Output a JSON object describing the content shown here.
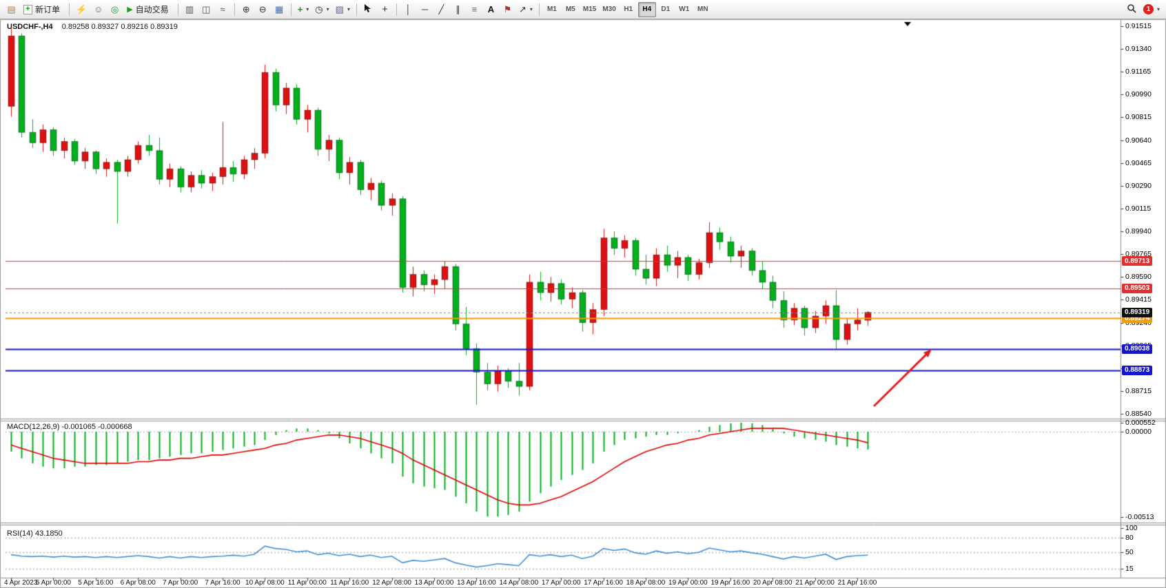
{
  "toolbar": {
    "new_order_label": "新订单",
    "autotrading_label": "自动交易",
    "timeframes": [
      "M1",
      "M5",
      "M15",
      "M30",
      "H1",
      "H4",
      "D1",
      "W1",
      "MN"
    ],
    "active_timeframe": "H4",
    "notification_count": "1",
    "icons": {
      "chart_window": "▤",
      "order_plus": "+",
      "lightning": "⚡",
      "user": "☺",
      "compass": "◎",
      "play": "▶",
      "bar_chart": "▥",
      "candle_chart": "◫",
      "line_chart": "≈",
      "zoom_in": "⊕",
      "zoom_out": "⊖",
      "tile_windows": "▦",
      "indicators_plus": "+",
      "periods_clock": "◷",
      "templates": "▨",
      "crosshair": "+",
      "vertical_line": "│",
      "horizontal_line": "─",
      "trend_line": "╱",
      "channel": "∥",
      "fibonacci": "≡",
      "text": "A",
      "text_label": "⚑",
      "arrows_tool": "↗",
      "caret": "▾"
    }
  },
  "chart_data": {
    "type": "candlestick",
    "title": "USDCHF-,H4",
    "ohlc_text": "0.89258 0.89327 0.89216 0.89319",
    "bull_color": "#dd1111",
    "bear_color": "#00b01c",
    "price_axis": {
      "max": 0.91515,
      "min": 0.8854,
      "labels": [
        "0.91515",
        "0.91340",
        "0.91165",
        "0.90990",
        "0.90815",
        "0.90640",
        "0.90465",
        "0.90290",
        "0.90115",
        "0.89940",
        "0.89765",
        "0.89590",
        "0.89415",
        "0.89240",
        "0.89065",
        "0.88890",
        "0.88715",
        "0.88540"
      ]
    },
    "time_labels": [
      "4 Apr 2023",
      "5 Apr 00:00",
      "5 Apr 16:00",
      "6 Apr 08:00",
      "7 Apr 00:00",
      "7 Apr 16:00",
      "10 Apr 08:00",
      "11 Apr 00:00",
      "11 Apr 16:00",
      "12 Apr 08:00",
      "13 Apr 00:00",
      "13 Apr 16:00",
      "14 Apr 08:00",
      "17 Apr 00:00",
      "17 Apr 16:00",
      "18 Apr 08:00",
      "19 Apr 00:00",
      "19 Apr 16:00",
      "20 Apr 08:00",
      "21 Apr 00:00",
      "21 Apr 16:00"
    ],
    "candles": [
      [
        0.909,
        0.915,
        0.9082,
        0.9144
      ],
      [
        0.9144,
        0.9146,
        0.9066,
        0.907
      ],
      [
        0.907,
        0.908,
        0.9058,
        0.9062
      ],
      [
        0.9062,
        0.9076,
        0.9055,
        0.9072
      ],
      [
        0.9072,
        0.9074,
        0.9052,
        0.9056
      ],
      [
        0.9056,
        0.9066,
        0.905,
        0.9063
      ],
      [
        0.9063,
        0.9065,
        0.9045,
        0.9048
      ],
      [
        0.9048,
        0.9058,
        0.9042,
        0.9055
      ],
      [
        0.9055,
        0.9056,
        0.9038,
        0.9042
      ],
      [
        0.9042,
        0.905,
        0.9036,
        0.9047
      ],
      [
        0.9047,
        0.9049,
        0.9,
        0.904
      ],
      [
        0.904,
        0.9052,
        0.9036,
        0.9049
      ],
      [
        0.9049,
        0.9063,
        0.9046,
        0.906
      ],
      [
        0.906,
        0.9068,
        0.9052,
        0.9056
      ],
      [
        0.9056,
        0.9066,
        0.903,
        0.9034
      ],
      [
        0.9034,
        0.9046,
        0.9028,
        0.9042
      ],
      [
        0.9042,
        0.9044,
        0.9024,
        0.9028
      ],
      [
        0.9028,
        0.904,
        0.9024,
        0.9037
      ],
      [
        0.9037,
        0.9041,
        0.9027,
        0.9031
      ],
      [
        0.9031,
        0.9039,
        0.9025,
        0.9036
      ],
      [
        0.9036,
        0.9078,
        0.903,
        0.9043
      ],
      [
        0.9043,
        0.9048,
        0.9032,
        0.9038
      ],
      [
        0.9038,
        0.9052,
        0.9034,
        0.9049
      ],
      [
        0.9049,
        0.9058,
        0.9042,
        0.9054
      ],
      [
        0.9054,
        0.9122,
        0.905,
        0.9116
      ],
      [
        0.9116,
        0.9119,
        0.9086,
        0.9091
      ],
      [
        0.9091,
        0.9108,
        0.9084,
        0.9104
      ],
      [
        0.9104,
        0.9107,
        0.9076,
        0.908
      ],
      [
        0.908,
        0.9091,
        0.907,
        0.9087
      ],
      [
        0.9087,
        0.9089,
        0.9052,
        0.9057
      ],
      [
        0.9057,
        0.9068,
        0.9048,
        0.9064
      ],
      [
        0.9064,
        0.9066,
        0.9034,
        0.9039
      ],
      [
        0.9039,
        0.9051,
        0.903,
        0.9047
      ],
      [
        0.9047,
        0.9049,
        0.9022,
        0.9026
      ],
      [
        0.9026,
        0.9035,
        0.9018,
        0.9031
      ],
      [
        0.9031,
        0.9033,
        0.901,
        0.9014
      ],
      [
        0.9014,
        0.9023,
        0.9006,
        0.9019
      ],
      [
        0.9019,
        0.9021,
        0.8947,
        0.8951
      ],
      [
        0.8951,
        0.8967,
        0.8944,
        0.8961
      ],
      [
        0.8961,
        0.8964,
        0.8948,
        0.8953
      ],
      [
        0.8953,
        0.8961,
        0.8946,
        0.8957
      ],
      [
        0.8957,
        0.8971,
        0.895,
        0.8967
      ],
      [
        0.8967,
        0.8969,
        0.8918,
        0.8923
      ],
      [
        0.8923,
        0.8936,
        0.8899,
        0.8904
      ],
      [
        0.8904,
        0.8908,
        0.8861,
        0.8886
      ],
      [
        0.8886,
        0.8893,
        0.8872,
        0.8877
      ],
      [
        0.8877,
        0.8891,
        0.8871,
        0.8887
      ],
      [
        0.8887,
        0.8889,
        0.8874,
        0.8879
      ],
      [
        0.8879,
        0.8893,
        0.8868,
        0.8875
      ],
      [
        0.8875,
        0.8961,
        0.8872,
        0.8955
      ],
      [
        0.8955,
        0.8963,
        0.8941,
        0.8947
      ],
      [
        0.8947,
        0.8959,
        0.894,
        0.8954
      ],
      [
        0.8954,
        0.8957,
        0.8938,
        0.8942
      ],
      [
        0.8942,
        0.8951,
        0.8935,
        0.8947
      ],
      [
        0.8947,
        0.8949,
        0.8917,
        0.8924
      ],
      [
        0.8924,
        0.8939,
        0.8915,
        0.8934
      ],
      [
        0.8934,
        0.8996,
        0.8929,
        0.8989
      ],
      [
        0.8989,
        0.8994,
        0.8976,
        0.8981
      ],
      [
        0.8981,
        0.8991,
        0.8974,
        0.8987
      ],
      [
        0.8987,
        0.8989,
        0.896,
        0.8965
      ],
      [
        0.8965,
        0.8976,
        0.8953,
        0.8958
      ],
      [
        0.8958,
        0.8981,
        0.8952,
        0.8976
      ],
      [
        0.8976,
        0.8983,
        0.8963,
        0.8968
      ],
      [
        0.8968,
        0.8979,
        0.8958,
        0.8974
      ],
      [
        0.8974,
        0.8976,
        0.8956,
        0.8961
      ],
      [
        0.8961,
        0.8973,
        0.8957,
        0.897
      ],
      [
        0.897,
        0.9001,
        0.8966,
        0.8993
      ],
      [
        0.8993,
        0.8997,
        0.898,
        0.8986
      ],
      [
        0.8986,
        0.899,
        0.897,
        0.8975
      ],
      [
        0.8975,
        0.8983,
        0.8966,
        0.8979
      ],
      [
        0.8979,
        0.8981,
        0.896,
        0.8964
      ],
      [
        0.8964,
        0.8971,
        0.895,
        0.8955
      ],
      [
        0.8955,
        0.896,
        0.8935,
        0.8941
      ],
      [
        0.8941,
        0.8948,
        0.892,
        0.8926
      ],
      [
        0.8926,
        0.8939,
        0.8922,
        0.8935
      ],
      [
        0.8935,
        0.8937,
        0.8914,
        0.892
      ],
      [
        0.892,
        0.8933,
        0.8916,
        0.8929
      ],
      [
        0.8929,
        0.8941,
        0.8923,
        0.8937
      ],
      [
        0.8937,
        0.8949,
        0.8904,
        0.8911
      ],
      [
        0.8911,
        0.8927,
        0.8907,
        0.8923
      ],
      [
        0.8923,
        0.8935,
        0.8918,
        0.8926
      ],
      [
        0.89258,
        0.89327,
        0.89216,
        0.89319
      ]
    ],
    "levels": [
      {
        "label": "0.89713",
        "price": 0.89713,
        "color": "#e03131",
        "width": 1
      },
      {
        "label": "0.89503",
        "price": 0.89503,
        "color": "#e03131",
        "width": 1
      },
      {
        "label": "0.89274",
        "price": 0.89274,
        "color": "#f59d00",
        "width": 2
      },
      {
        "label": "0.89038",
        "price": 0.89038,
        "color": "#1414cc",
        "width": 2
      },
      {
        "label": "0.88873",
        "price": 0.88873,
        "color": "#1414cc",
        "width": 2
      }
    ],
    "current_price": {
      "label": "0.89319",
      "value": 0.89319,
      "tag_color": "#111111"
    },
    "arrow": {
      "color": "#e02020",
      "from": [
        1268,
        590
      ],
      "to": [
        1352,
        507
      ]
    },
    "macd": {
      "label": "MACD(12,26,9)",
      "values_text": "-0.001065 -0.000668",
      "axis_labels": [
        "0.000552",
        "0.00000",
        "-0.00513"
      ],
      "hist_color": "#00b01c",
      "signal_color": "#e00000",
      "hist": [
        -0.0012,
        -0.0016,
        -0.0019,
        -0.0021,
        -0.0022,
        -0.0022,
        -0.0021,
        -0.0021,
        -0.002,
        -0.002,
        -0.0019,
        -0.0018,
        -0.0017,
        -0.0017,
        -0.0016,
        -0.0015,
        -0.0014,
        -0.0013,
        -0.0013,
        -0.0012,
        -0.0011,
        -0.001,
        -0.0009,
        -0.0008,
        -0.0005,
        -0.0002,
        0.0001,
        0.0002,
        0.0002,
        0.0001,
        -0.0001,
        -0.0004,
        -0.0007,
        -0.001,
        -0.0013,
        -0.0016,
        -0.0019,
        -0.0027,
        -0.0031,
        -0.0033,
        -0.0034,
        -0.0035,
        -0.0039,
        -0.0043,
        -0.0048,
        -0.0051,
        -0.0051,
        -0.005,
        -0.0048,
        -0.0042,
        -0.0037,
        -0.0033,
        -0.0029,
        -0.0026,
        -0.0023,
        -0.0019,
        -0.0012,
        -0.0008,
        -0.0005,
        -0.0004,
        -0.0003,
        -0.0002,
        -0.0002,
        -0.0001,
        0.0,
        0.0001,
        0.0003,
        0.0004,
        0.0005,
        0.00055,
        0.0005,
        0.0004,
        0.0002,
        -0.0001,
        -0.0003,
        -0.0004,
        -0.0005,
        -0.0006,
        -0.0008,
        -0.0009,
        -0.001,
        -0.001065
      ],
      "signal": [
        -0.0008,
        -0.001,
        -0.0012,
        -0.0014,
        -0.0016,
        -0.0017,
        -0.0018,
        -0.0019,
        -0.0019,
        -0.0019,
        -0.0019,
        -0.0019,
        -0.0018,
        -0.0018,
        -0.0017,
        -0.0017,
        -0.0016,
        -0.0016,
        -0.0015,
        -0.0014,
        -0.0014,
        -0.0013,
        -0.0012,
        -0.0011,
        -0.001,
        -0.0008,
        -0.0007,
        -0.0005,
        -0.0004,
        -0.0003,
        -0.0002,
        -0.0002,
        -0.0003,
        -0.0004,
        -0.0006,
        -0.0008,
        -0.001,
        -0.0013,
        -0.0017,
        -0.002,
        -0.0023,
        -0.0026,
        -0.0029,
        -0.0032,
        -0.0035,
        -0.0038,
        -0.0041,
        -0.0043,
        -0.0044,
        -0.0044,
        -0.0043,
        -0.0041,
        -0.0039,
        -0.0036,
        -0.0033,
        -0.003,
        -0.0026,
        -0.0022,
        -0.0018,
        -0.0015,
        -0.0012,
        -0.001,
        -0.0008,
        -0.0007,
        -0.0005,
        -0.0004,
        -0.0002,
        -0.0001,
        0.0,
        0.0001,
        0.0002,
        0.0002,
        0.0002,
        0.0002,
        0.0001,
        0.0,
        -0.0001,
        -0.0002,
        -0.0003,
        -0.0004,
        -0.0005,
        -0.000668
      ]
    },
    "rsi": {
      "label": "RSI(14)",
      "value_text": "43.1850",
      "axis_labels": [
        "100",
        "80",
        "50",
        "15"
      ],
      "levels": [
        80,
        50,
        15
      ],
      "color": "#3f8fd6",
      "values": [
        44,
        41,
        40,
        41,
        39,
        41,
        39,
        40,
        38,
        40,
        38,
        40,
        42,
        40,
        37,
        40,
        37,
        40,
        38,
        40,
        41,
        43,
        41,
        45,
        62,
        57,
        55,
        50,
        52,
        44,
        47,
        42,
        45,
        40,
        43,
        38,
        41,
        27,
        32,
        30,
        33,
        36,
        27,
        22,
        18,
        21,
        25,
        23,
        21,
        44,
        41,
        44,
        40,
        43,
        36,
        41,
        57,
        53,
        56,
        48,
        45,
        52,
        47,
        50,
        46,
        49,
        58,
        54,
        50,
        52,
        48,
        45,
        40,
        35,
        40,
        37,
        41,
        45,
        34,
        40,
        42,
        43.185
      ]
    }
  }
}
